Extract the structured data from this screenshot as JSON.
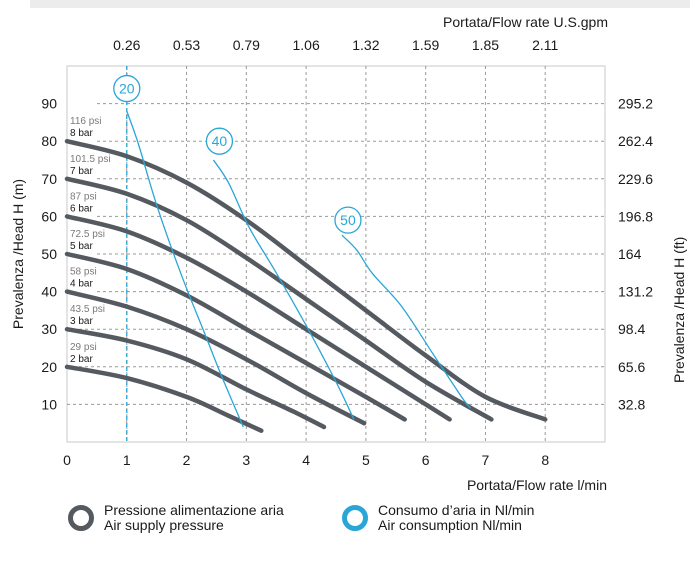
{
  "chart_data": {
    "type": "line",
    "top_axis": {
      "label_bold": "Portata",
      "label_rest": "/Flow rate U.S.gpm",
      "ticks": [
        "0.26",
        "0.53",
        "0.79",
        "1.06",
        "1.32",
        "1.59",
        "1.85",
        "2.11"
      ]
    },
    "x_axis": {
      "label_bold": "Portata",
      "label_rest": "/Flow rate  l/min",
      "range": [
        0,
        9
      ],
      "ticks": [
        "0",
        "1",
        "2",
        "3",
        "4",
        "5",
        "6",
        "7",
        "8"
      ]
    },
    "y_left": {
      "label": "Prevalenza /Head H (m)",
      "range": [
        0,
        100
      ],
      "ticks": [
        "10",
        "20",
        "30",
        "40",
        "50",
        "60",
        "70",
        "80",
        "90"
      ]
    },
    "y_right": {
      "label": "Prevalenza /Head H (ft)",
      "ticks": [
        "32.8",
        "65.6",
        "98.4",
        "131.2",
        "164",
        "196.8",
        "229.6",
        "262.4",
        "295.2"
      ]
    },
    "grid": true,
    "colors": {
      "pressure": "#555a60",
      "air": "#2aa6d6",
      "psi_text": "#7a7a7a",
      "grid": "#9a9a9a",
      "frame": "#c8c8c8"
    },
    "pressure_series": [
      {
        "psi": "116 psi",
        "bar": "8 bar",
        "points": [
          [
            0,
            80
          ],
          [
            1,
            76
          ],
          [
            2,
            69
          ],
          [
            3,
            59
          ],
          [
            4,
            47
          ],
          [
            5,
            35
          ],
          [
            6,
            23
          ],
          [
            7,
            12
          ],
          [
            8,
            6
          ]
        ]
      },
      {
        "psi": "101.5 psi",
        "bar": "7 bar",
        "points": [
          [
            0,
            70
          ],
          [
            1,
            66
          ],
          [
            2,
            59
          ],
          [
            3,
            49
          ],
          [
            4,
            38
          ],
          [
            5,
            27
          ],
          [
            6,
            16
          ],
          [
            7.1,
            6
          ]
        ]
      },
      {
        "psi": "87 psi",
        "bar": "6 bar",
        "points": [
          [
            0,
            60
          ],
          [
            1,
            56
          ],
          [
            2,
            49
          ],
          [
            3,
            40
          ],
          [
            4,
            30
          ],
          [
            5,
            20
          ],
          [
            6,
            10
          ],
          [
            6.4,
            6
          ]
        ]
      },
      {
        "psi": "72.5 psi",
        "bar": "5 bar",
        "points": [
          [
            0,
            50
          ],
          [
            1,
            46
          ],
          [
            2,
            39
          ],
          [
            3,
            30
          ],
          [
            4,
            21
          ],
          [
            5,
            12
          ],
          [
            5.65,
            6
          ]
        ]
      },
      {
        "psi": "58 psi",
        "bar": "4 bar",
        "points": [
          [
            0,
            40
          ],
          [
            1,
            36
          ],
          [
            2,
            30
          ],
          [
            3,
            22
          ],
          [
            4,
            13
          ],
          [
            4.97,
            5
          ]
        ]
      },
      {
        "psi": "43.5 psi",
        "bar": "3 bar",
        "points": [
          [
            0,
            30
          ],
          [
            1,
            27
          ],
          [
            2,
            22
          ],
          [
            3,
            14
          ],
          [
            3.8,
            8
          ],
          [
            4.3,
            4
          ]
        ]
      },
      {
        "psi": "29 psi",
        "bar": "2 bar",
        "points": [
          [
            0,
            20
          ],
          [
            1,
            17
          ],
          [
            2,
            12
          ],
          [
            2.7,
            7
          ],
          [
            3.25,
            3
          ]
        ]
      }
    ],
    "air_series": [
      {
        "name": "20",
        "label_at": [
          1,
          94
        ],
        "points": [
          [
            1,
            88
          ],
          [
            1.2,
            79
          ],
          [
            1.5,
            63
          ],
          [
            1.9,
            45
          ],
          [
            2.3,
            29
          ],
          [
            2.6,
            17
          ],
          [
            2.95,
            4
          ]
        ]
      },
      {
        "name": "40",
        "label_at": [
          2.55,
          80
        ],
        "points": [
          [
            2.45,
            75
          ],
          [
            2.7,
            69
          ],
          [
            3.05,
            57
          ],
          [
            3.5,
            45
          ],
          [
            4.0,
            31
          ],
          [
            4.5,
            16
          ],
          [
            4.8,
            6
          ]
        ]
      },
      {
        "name": "50",
        "label_at": [
          4.7,
          59
        ],
        "points": [
          [
            4.6,
            55
          ],
          [
            4.85,
            51
          ],
          [
            5.1,
            45
          ],
          [
            5.6,
            36
          ],
          [
            6.1,
            24
          ],
          [
            6.6,
            12
          ],
          [
            6.75,
            9
          ]
        ]
      }
    ],
    "reference_line_x": 1
  },
  "legend": {
    "pressure_l1": "Pressione alimentazione aria",
    "pressure_l2": "Air supply pressure",
    "air_l1": "Consumo d’aria in Nl/min",
    "air_l2": "Air consumption Nl/min"
  }
}
